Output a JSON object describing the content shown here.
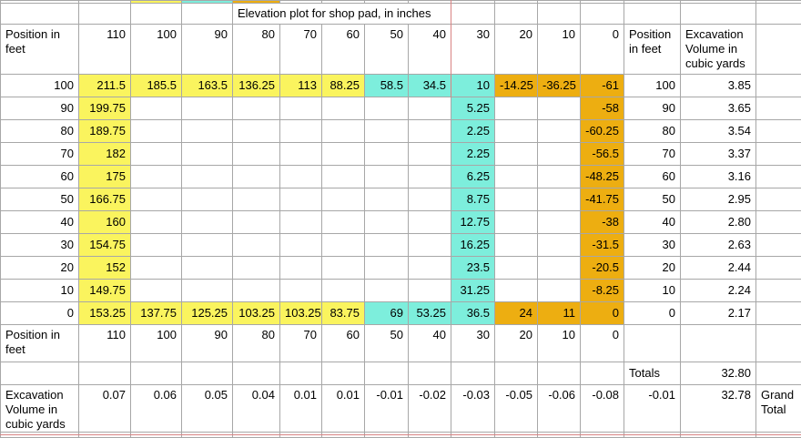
{
  "title": "Elevation plot for shop pad, in inches",
  "colors": {
    "yellow": "#faf45e",
    "cyan": "#7deedc",
    "orange": "#edae11",
    "page_break": "#d98383"
  },
  "top_strip": {
    "fills": [
      "",
      "",
      "y",
      "c",
      "o",
      "",
      "",
      "",
      "",
      "",
      "",
      "",
      "",
      "",
      "",
      ""
    ]
  },
  "header": {
    "row_label": "Position in feet",
    "positions": [
      "110",
      "100",
      "90",
      "80",
      "70",
      "60",
      "50",
      "40",
      "30",
      "20",
      "10",
      "0"
    ],
    "pos_col_label": "Position in feet",
    "volume_col_label": "Excavation Volume in cubic yards"
  },
  "grid": {
    "rows": [
      {
        "pos": "100",
        "values": [
          "211.5",
          "185.5",
          "163.5",
          "136.25",
          "113",
          "88.25",
          "58.5",
          "34.5",
          "10",
          "-14.25",
          "-36.25",
          "-61"
        ],
        "fills": [
          "y",
          "y",
          "y",
          "y",
          "y",
          "y",
          "c",
          "c",
          "c",
          "o",
          "o",
          "o"
        ],
        "pos2": "100",
        "volume": "3.85"
      },
      {
        "pos": "90",
        "values": [
          "199.75",
          "",
          "",
          "",
          "",
          "",
          "",
          "",
          "5.25",
          "",
          "",
          "-58"
        ],
        "fills": [
          "y",
          "",
          "",
          "",
          "",
          "",
          "",
          "",
          "c",
          "",
          "",
          "o"
        ],
        "pos2": "90",
        "volume": "3.65"
      },
      {
        "pos": "80",
        "values": [
          "189.75",
          "",
          "",
          "",
          "",
          "",
          "",
          "",
          "2.25",
          "",
          "",
          "-60.25"
        ],
        "fills": [
          "y",
          "",
          "",
          "",
          "",
          "",
          "",
          "",
          "c",
          "",
          "",
          "o"
        ],
        "pos2": "80",
        "volume": "3.54"
      },
      {
        "pos": "70",
        "values": [
          "182",
          "",
          "",
          "",
          "",
          "",
          "",
          "",
          "2.25",
          "",
          "",
          "-56.5"
        ],
        "fills": [
          "y",
          "",
          "",
          "",
          "",
          "",
          "",
          "",
          "c",
          "",
          "",
          "o"
        ],
        "pos2": "70",
        "volume": "3.37"
      },
      {
        "pos": "60",
        "values": [
          "175",
          "",
          "",
          "",
          "",
          "",
          "",
          "",
          "6.25",
          "",
          "",
          "-48.25"
        ],
        "fills": [
          "y",
          "",
          "",
          "",
          "",
          "",
          "",
          "",
          "c",
          "",
          "",
          "o"
        ],
        "pos2": "60",
        "volume": "3.16"
      },
      {
        "pos": "50",
        "values": [
          "166.75",
          "",
          "",
          "",
          "",
          "",
          "",
          "",
          "8.75",
          "",
          "",
          "-41.75"
        ],
        "fills": [
          "y",
          "",
          "",
          "",
          "",
          "",
          "",
          "",
          "c",
          "",
          "",
          "o"
        ],
        "pos2": "50",
        "volume": "2.95"
      },
      {
        "pos": "40",
        "values": [
          "160",
          "",
          "",
          "",
          "",
          "",
          "",
          "",
          "12.75",
          "",
          "",
          "-38"
        ],
        "fills": [
          "y",
          "",
          "",
          "",
          "",
          "",
          "",
          "",
          "c",
          "",
          "",
          "o"
        ],
        "pos2": "40",
        "volume": "2.80"
      },
      {
        "pos": "30",
        "values": [
          "154.75",
          "",
          "",
          "",
          "",
          "",
          "",
          "",
          "16.25",
          "",
          "",
          "-31.5"
        ],
        "fills": [
          "y",
          "",
          "",
          "",
          "",
          "",
          "",
          "",
          "c",
          "",
          "",
          "o"
        ],
        "pos2": "30",
        "volume": "2.63"
      },
      {
        "pos": "20",
        "values": [
          "152",
          "",
          "",
          "",
          "",
          "",
          "",
          "",
          "23.5",
          "",
          "",
          "-20.5"
        ],
        "fills": [
          "y",
          "",
          "",
          "",
          "",
          "",
          "",
          "",
          "c",
          "",
          "",
          "o"
        ],
        "pos2": "20",
        "volume": "2.44"
      },
      {
        "pos": "10",
        "values": [
          "149.75",
          "",
          "",
          "",
          "",
          "",
          "",
          "",
          "31.25",
          "",
          "",
          "-8.25"
        ],
        "fills": [
          "y",
          "",
          "",
          "",
          "",
          "",
          "",
          "",
          "c",
          "",
          "",
          "o"
        ],
        "pos2": "10",
        "volume": "2.24"
      },
      {
        "pos": "0",
        "values": [
          "153.25",
          "137.75",
          "125.25",
          "103.25",
          "103.25",
          "83.75",
          "69",
          "53.25",
          "36.5",
          "24",
          "11",
          "0"
        ],
        "fills": [
          "y",
          "y",
          "y",
          "y",
          "y",
          "y",
          "c",
          "c",
          "c",
          "o",
          "o",
          "o"
        ],
        "pos2": "0",
        "volume": "2.17"
      }
    ]
  },
  "footer_positions": {
    "row_label": "Position in feet",
    "positions": [
      "110",
      "100",
      "90",
      "80",
      "70",
      "60",
      "50",
      "40",
      "30",
      "20",
      "10",
      "0"
    ]
  },
  "totals": {
    "label": "Totals",
    "value": "32.80"
  },
  "excavation": {
    "row_label": "Excavation Volume in cubic yards",
    "values": [
      "0.07",
      "0.06",
      "0.05",
      "0.04",
      "0.01",
      "0.01",
      "-0.01",
      "-0.02",
      "-0.03",
      "-0.05",
      "-0.06",
      "-0.08"
    ],
    "pos_value": "-0.01",
    "total": "32.78",
    "grand_label": "Grand Total"
  }
}
